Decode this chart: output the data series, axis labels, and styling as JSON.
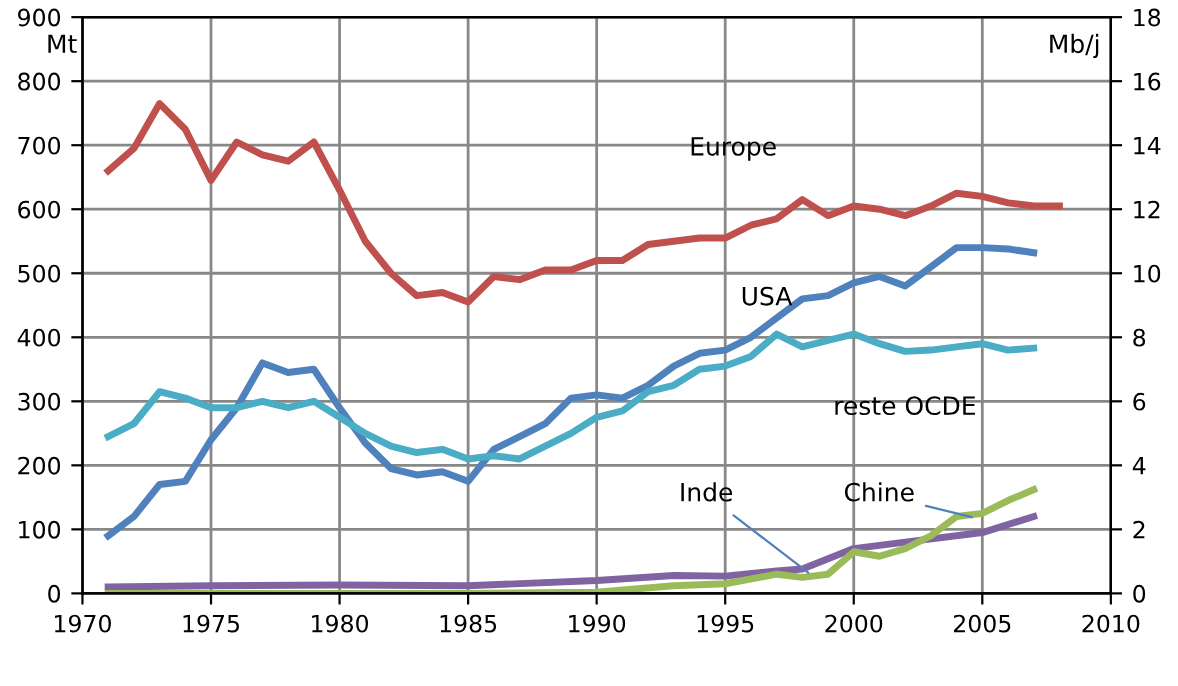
{
  "chart_data": {
    "type": "line",
    "ylabel": "Mt",
    "y2label": "Mb/j",
    "xlim": [
      1970,
      2010
    ],
    "xticks": [
      1970,
      1975,
      1980,
      1985,
      1990,
      1995,
      2000,
      2005,
      2010
    ],
    "ylim": [
      0,
      900
    ],
    "yticks": [
      0,
      100,
      200,
      300,
      400,
      500,
      600,
      700,
      800,
      900
    ],
    "y2lim": [
      0,
      18
    ],
    "y2ticks": [
      0,
      2,
      4,
      6,
      8,
      10,
      12,
      14,
      16,
      18
    ],
    "grid": true,
    "legend": false,
    "marker": "none",
    "line_style": "solid",
    "series": [
      {
        "name": "Europe",
        "color": "#c0504d",
        "x": [
          1971,
          1972,
          1973,
          1974,
          1975,
          1976,
          1977,
          1978,
          1979,
          1980,
          1981,
          1982,
          1983,
          1984,
          1985,
          1986,
          1987,
          1988,
          1989,
          1990,
          1991,
          1992,
          1993,
          1994,
          1995,
          1996,
          1997,
          1998,
          1999,
          2000,
          2001,
          2002,
          2003,
          2004,
          2005,
          2006,
          2007,
          2008
        ],
        "values": [
          660,
          695,
          765,
          725,
          645,
          705,
          685,
          675,
          705,
          630,
          550,
          500,
          465,
          470,
          455,
          495,
          490,
          505,
          505,
          520,
          520,
          545,
          550,
          555,
          555,
          575,
          585,
          615,
          590,
          605,
          600,
          590,
          605,
          625,
          620,
          610,
          605,
          605
        ]
      },
      {
        "name": "USA",
        "color": "#4f81bd",
        "x": [
          1971,
          1972,
          1973,
          1974,
          1975,
          1976,
          1977,
          1978,
          1979,
          1980,
          1981,
          1982,
          1983,
          1984,
          1985,
          1986,
          1987,
          1988,
          1989,
          1990,
          1991,
          1992,
          1993,
          1994,
          1995,
          1996,
          1997,
          1998,
          1999,
          2000,
          2001,
          2002,
          2003,
          2004,
          2005,
          2006,
          2007
        ],
        "values": [
          90,
          120,
          170,
          175,
          240,
          290,
          360,
          345,
          350,
          290,
          235,
          195,
          185,
          190,
          175,
          225,
          245,
          265,
          305,
          310,
          305,
          325,
          355,
          375,
          380,
          400,
          430,
          460,
          465,
          485,
          495,
          480,
          510,
          540,
          540,
          538,
          532
        ]
      },
      {
        "name": "reste OCDE",
        "color": "#4bacc6",
        "x": [
          1971,
          1972,
          1973,
          1974,
          1975,
          1976,
          1977,
          1978,
          1979,
          1980,
          1981,
          1982,
          1983,
          1984,
          1985,
          1986,
          1987,
          1988,
          1989,
          1990,
          1991,
          1992,
          1993,
          1994,
          1995,
          1996,
          1997,
          1998,
          1999,
          2000,
          2001,
          2002,
          2003,
          2004,
          2005,
          2006,
          2007
        ],
        "values": [
          245,
          265,
          315,
          305,
          290,
          290,
          300,
          290,
          300,
          275,
          250,
          230,
          220,
          225,
          210,
          215,
          210,
          230,
          250,
          275,
          285,
          315,
          325,
          350,
          355,
          370,
          405,
          385,
          395,
          405,
          390,
          378,
          380,
          385,
          390,
          380,
          383
        ]
      },
      {
        "name": "Inde",
        "color": "#8064a2",
        "x": [
          1971,
          1975,
          1980,
          1985,
          1990,
          1993,
          1995,
          1997,
          1998,
          2000,
          2002,
          2005,
          2007
        ],
        "values": [
          10,
          12,
          13,
          12,
          20,
          28,
          27,
          35,
          38,
          70,
          80,
          95,
          120
        ]
      },
      {
        "name": "Chine",
        "color": "#9bbb59",
        "x": [
          1971,
          1985,
          1990,
          1993,
          1995,
          1997,
          1998,
          1999,
          2000,
          2001,
          2002,
          2003,
          2004,
          2005,
          2006,
          2007
        ],
        "values": [
          0,
          0,
          2,
          12,
          15,
          30,
          25,
          30,
          65,
          58,
          70,
          90,
          120,
          125,
          145,
          162
        ]
      }
    ]
  }
}
